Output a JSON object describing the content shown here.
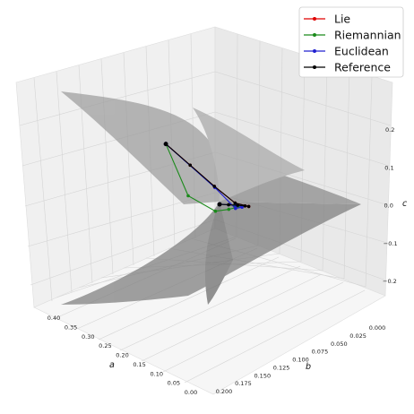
{
  "chart_data": {
    "type": "line",
    "projection": "3d",
    "title": "",
    "xlabel": "a",
    "ylabel": "b",
    "zlabel": "c",
    "xlim": [
      0,
      0.4
    ],
    "ylim": [
      0,
      0.2
    ],
    "zlim": [
      -0.3,
      0.3
    ],
    "x_ticks": [
      "0.40",
      "0.35",
      "0.30",
      "0.25",
      "0.20",
      "0.15",
      "0.10",
      "0.05",
      "0.00"
    ],
    "y_ticks": [
      "0.000",
      "0.025",
      "0.050",
      "0.075",
      "0.100",
      "0.125",
      "0.150",
      "0.175",
      "0.200"
    ],
    "z_ticks": [
      "0.2",
      "0.1",
      "0.0",
      "−0.1",
      "−0.2"
    ],
    "grid": true,
    "legend_position": "top-right",
    "surface": {
      "color": "#808080",
      "opacity": 0.55,
      "description_shape": "saddle"
    },
    "series": [
      {
        "name": "Lie",
        "color": "#e00000",
        "points": [
          [
            0.22,
            0.03,
            0.15
          ],
          [
            0.18,
            0.045,
            0.1
          ],
          [
            0.14,
            0.06,
            0.05
          ],
          [
            0.1,
            0.07,
            0.01
          ],
          [
            0.07,
            0.075,
            0.0
          ],
          [
            0.05,
            0.06,
            0.0
          ],
          [
            0.03,
            0.04,
            0.0
          ],
          [
            0.015,
            0.02,
            0.0
          ],
          [
            0.0,
            0.0,
            0.0
          ]
        ]
      },
      {
        "name": "Riemannian",
        "color": "#1a8a1a",
        "points": [
          [
            0.22,
            0.03,
            0.15
          ],
          [
            0.3,
            0.1,
            0.04
          ],
          [
            0.22,
            0.1,
            0.0
          ],
          [
            0.16,
            0.09,
            0.0
          ],
          [
            0.11,
            0.075,
            0.0
          ],
          [
            0.07,
            0.06,
            0.0
          ],
          [
            0.04,
            0.04,
            0.0
          ],
          [
            0.015,
            0.02,
            0.0
          ],
          [
            0.0,
            0.0,
            0.0
          ]
        ]
      },
      {
        "name": "Euclidean",
        "color": "#2020d0",
        "points": [
          [
            0.22,
            0.03,
            0.15
          ],
          [
            0.18,
            0.08,
            0.05
          ],
          [
            0.13,
            0.085,
            0.0
          ],
          [
            0.09,
            0.075,
            0.0
          ],
          [
            0.06,
            0.06,
            0.0
          ],
          [
            0.035,
            0.04,
            0.0
          ],
          [
            0.015,
            0.02,
            0.0
          ],
          [
            0.0,
            0.0,
            0.0
          ]
        ]
      },
      {
        "name": "Reference",
        "color": "#000000",
        "points": [
          [
            0.22,
            0.03,
            0.15
          ],
          [
            0.18,
            0.045,
            0.1
          ],
          [
            0.14,
            0.06,
            0.05
          ],
          [
            0.1,
            0.07,
            0.01
          ],
          [
            0.07,
            0.075,
            0.0
          ],
          [
            0.05,
            0.06,
            0.0
          ],
          [
            0.03,
            0.04,
            0.0
          ],
          [
            0.015,
            0.02,
            0.0
          ],
          [
            0.0,
            0.0,
            0.0
          ]
        ]
      }
    ]
  }
}
